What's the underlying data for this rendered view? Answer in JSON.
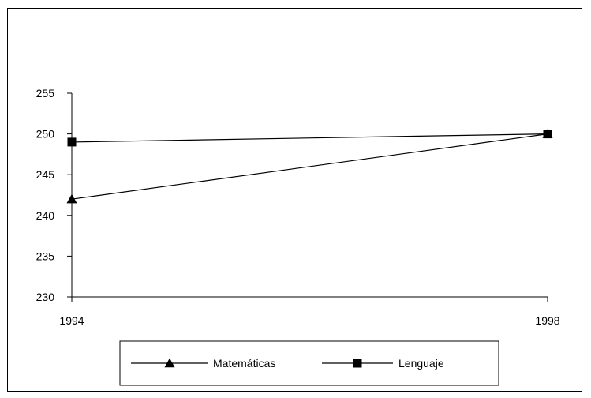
{
  "chart_data": {
    "type": "line",
    "x": [
      "1994",
      "1998"
    ],
    "series": [
      {
        "name": "Matemáticas",
        "values": [
          242,
          250
        ],
        "marker": "triangle"
      },
      {
        "name": "Lenguaje",
        "values": [
          249,
          250
        ],
        "marker": "square"
      }
    ],
    "ylim": [
      230,
      255
    ],
    "yticks": [
      230,
      235,
      240,
      245,
      250,
      255
    ],
    "grid": false,
    "legend_position": "bottom",
    "colors": {
      "line": "#000000",
      "background": "#ffffff"
    }
  }
}
